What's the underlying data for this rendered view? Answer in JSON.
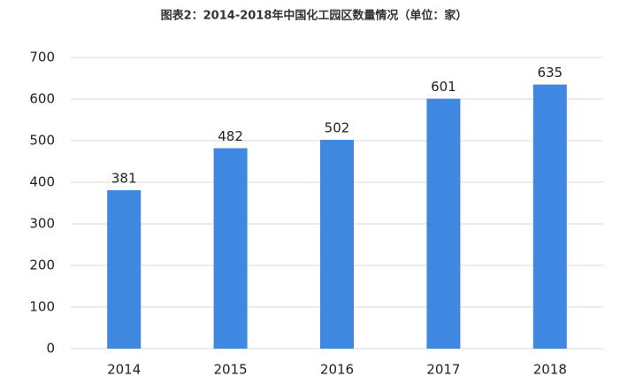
{
  "chart_data": {
    "type": "bar",
    "title": "图表2：2014-2018年中国化工园区数量情况（单位：家）",
    "categories": [
      "2014",
      "2015",
      "2016",
      "2017",
      "2018"
    ],
    "values": [
      381,
      482,
      502,
      601,
      635
    ],
    "color": "#3f88e2",
    "ylim": [
      0,
      700
    ],
    "yticks": [
      0,
      100,
      200,
      300,
      400,
      500,
      600,
      700
    ],
    "grid": true
  }
}
